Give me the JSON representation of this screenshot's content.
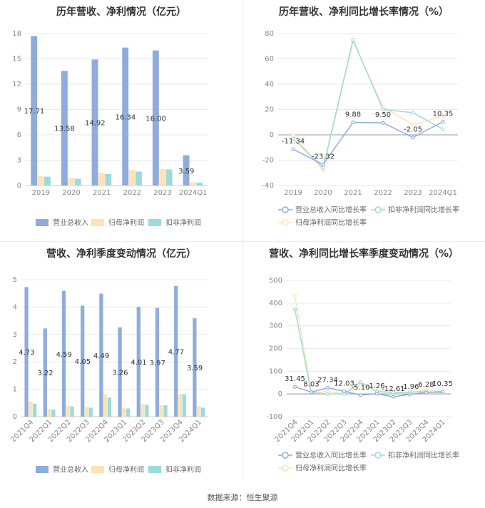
{
  "colors": {
    "revenue": "#8eacdc",
    "net_profit": "#fde3b6",
    "deducted_profit": "#9bdbdc",
    "grid": "#e9e9e9",
    "axis": "#cccccc"
  },
  "footer": "数据来源：恒生聚源",
  "chart_data": [
    {
      "type": "bar",
      "title": "历年营收、净利情况（亿元）",
      "categories": [
        "2019",
        "2020",
        "2021",
        "2022",
        "2023",
        "2024Q1"
      ],
      "yticks": [
        "0",
        "3",
        "6",
        "9",
        "12",
        "15",
        "18"
      ],
      "ylim": [
        0,
        18
      ],
      "series": [
        {
          "name": "营业总收入",
          "values": [
            17.71,
            13.58,
            14.92,
            16.34,
            16.0,
            3.59
          ],
          "labels": [
            "17.71",
            "13.58",
            "14.92",
            "16.34",
            "16.00",
            "3.59"
          ]
        },
        {
          "name": "归母净利润",
          "values": [
            1.15,
            0.9,
            1.5,
            1.85,
            1.95,
            0.38
          ]
        },
        {
          "name": "扣非净利润",
          "values": [
            1.05,
            0.8,
            1.35,
            1.65,
            1.9,
            0.33
          ]
        }
      ],
      "legend": "bottom"
    },
    {
      "type": "line",
      "title": "历年营收、净利同比增长率情况（%）",
      "categories": [
        "2019",
        "2020",
        "2021",
        "2022",
        "2023",
        "2024Q1"
      ],
      "yticks": [
        "-40",
        "-20",
        "0",
        "20",
        "40",
        "60",
        "80"
      ],
      "ylim": [
        -40,
        80
      ],
      "series": [
        {
          "name": "营业总收入同比增长率",
          "values": [
            -11.34,
            -23.32,
            9.88,
            9.5,
            -2.05,
            10.35
          ],
          "labels": [
            "-11.34",
            "-23.32",
            "9.88",
            "9.50",
            "-2.05",
            "10.35"
          ]
        },
        {
          "name": "归母净利润同比增长率",
          "values": [
            0,
            -28,
            74,
            22,
            8,
            15
          ]
        },
        {
          "name": "扣非净利润同比增长率",
          "values": [
            -3,
            -26,
            75,
            20,
            17.5,
            4.5
          ]
        }
      ],
      "legend": "bottom"
    },
    {
      "type": "bar",
      "title": "营收、净利季度变动情况（亿元）",
      "categories": [
        "2021Q4",
        "2022Q1",
        "2022Q2",
        "2022Q3",
        "2022Q4",
        "2023Q1",
        "2023Q2",
        "2023Q3",
        "2023Q4",
        "2024Q1"
      ],
      "yticks": [
        "0",
        "1",
        "2",
        "3",
        "4",
        "5"
      ],
      "ylim": [
        0,
        5
      ],
      "series": [
        {
          "name": "营业总收入",
          "values": [
            4.73,
            3.22,
            4.59,
            4.05,
            4.49,
            3.26,
            4.01,
            3.97,
            4.77,
            3.59
          ],
          "labels": [
            "4.73",
            "3.22",
            "4.59",
            "4.05",
            "4.49",
            "3.26",
            "4.01",
            "3.97",
            "4.77",
            "3.59"
          ]
        },
        {
          "name": "归母净利润",
          "values": [
            0.55,
            0.28,
            0.4,
            0.35,
            0.82,
            0.32,
            0.45,
            0.42,
            0.82,
            0.38
          ]
        },
        {
          "name": "扣非净利润",
          "values": [
            0.47,
            0.26,
            0.37,
            0.33,
            0.7,
            0.3,
            0.44,
            0.42,
            0.82,
            0.33
          ]
        }
      ],
      "legend": "bottom"
    },
    {
      "type": "line",
      "title": "营收、净利同比增长率季度变动情况（%）",
      "categories": [
        "2021Q4",
        "2022Q1",
        "2022Q2",
        "2022Q3",
        "2022Q4",
        "2023Q1",
        "2023Q2",
        "2023Q3",
        "2023Q4",
        "2024Q1"
      ],
      "yticks": [
        "-100",
        "0",
        "100",
        "200",
        "300",
        "400",
        "500"
      ],
      "ylim": [
        -100,
        500
      ],
      "series": [
        {
          "name": "营业总收入同比增长率",
          "values": [
            31.45,
            8.03,
            27.34,
            12.03,
            -5.1,
            1.26,
            -12.61,
            -1.96,
            6.28,
            10.35
          ],
          "labels": [
            "31.45",
            "8.03",
            "27.34",
            "12.03",
            "-5.10",
            "1.26",
            "-12.61",
            "-1.96",
            "6.28",
            "10.35"
          ]
        },
        {
          "name": "归母净利润同比增长率",
          "values": [
            432,
            5,
            10,
            2,
            40,
            15,
            8,
            5,
            18,
            10
          ]
        },
        {
          "name": "扣非净利润同比增长率",
          "values": [
            372,
            5,
            0,
            0,
            52,
            10,
            6,
            8,
            10,
            5
          ]
        }
      ],
      "legend": "bottom"
    }
  ]
}
